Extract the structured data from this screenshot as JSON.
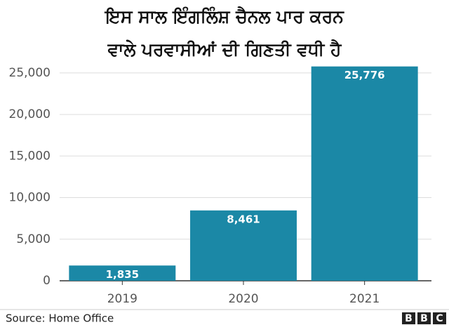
{
  "chart_data": {
    "type": "bar",
    "title": [
      "ਇਸ ਸਾਲ ਇੰਗਲਿੰਸ਼ ਚੈਨਲ ਪਾਰ ਕਰਨ",
      "ਵਾਲੇ ਪਰਵਾਸੀਆਂ ਦੀ ਗਿਣਤੀ ਵਧੀ ਹੈ"
    ],
    "categories": [
      "2019",
      "2020",
      "2021"
    ],
    "values": [
      1835,
      8461,
      25776
    ],
    "value_labels": [
      "1,835",
      "8,461",
      "25,776"
    ],
    "color": "#1b88a6",
    "ylim": [
      0,
      26000
    ],
    "yticks": [
      0,
      {
        "value": 5000,
        "label": "5,000"
      },
      {
        "value": 10000,
        "label": "10,000"
      },
      {
        "value": 15000,
        "label": "15,000"
      },
      {
        "value": 20000,
        "label": "20,000"
      },
      {
        "value": 25000,
        "label": "25,000"
      }
    ],
    "grid": true,
    "source": "Source: Home Office",
    "logo": [
      "B",
      "B",
      "C"
    ]
  }
}
